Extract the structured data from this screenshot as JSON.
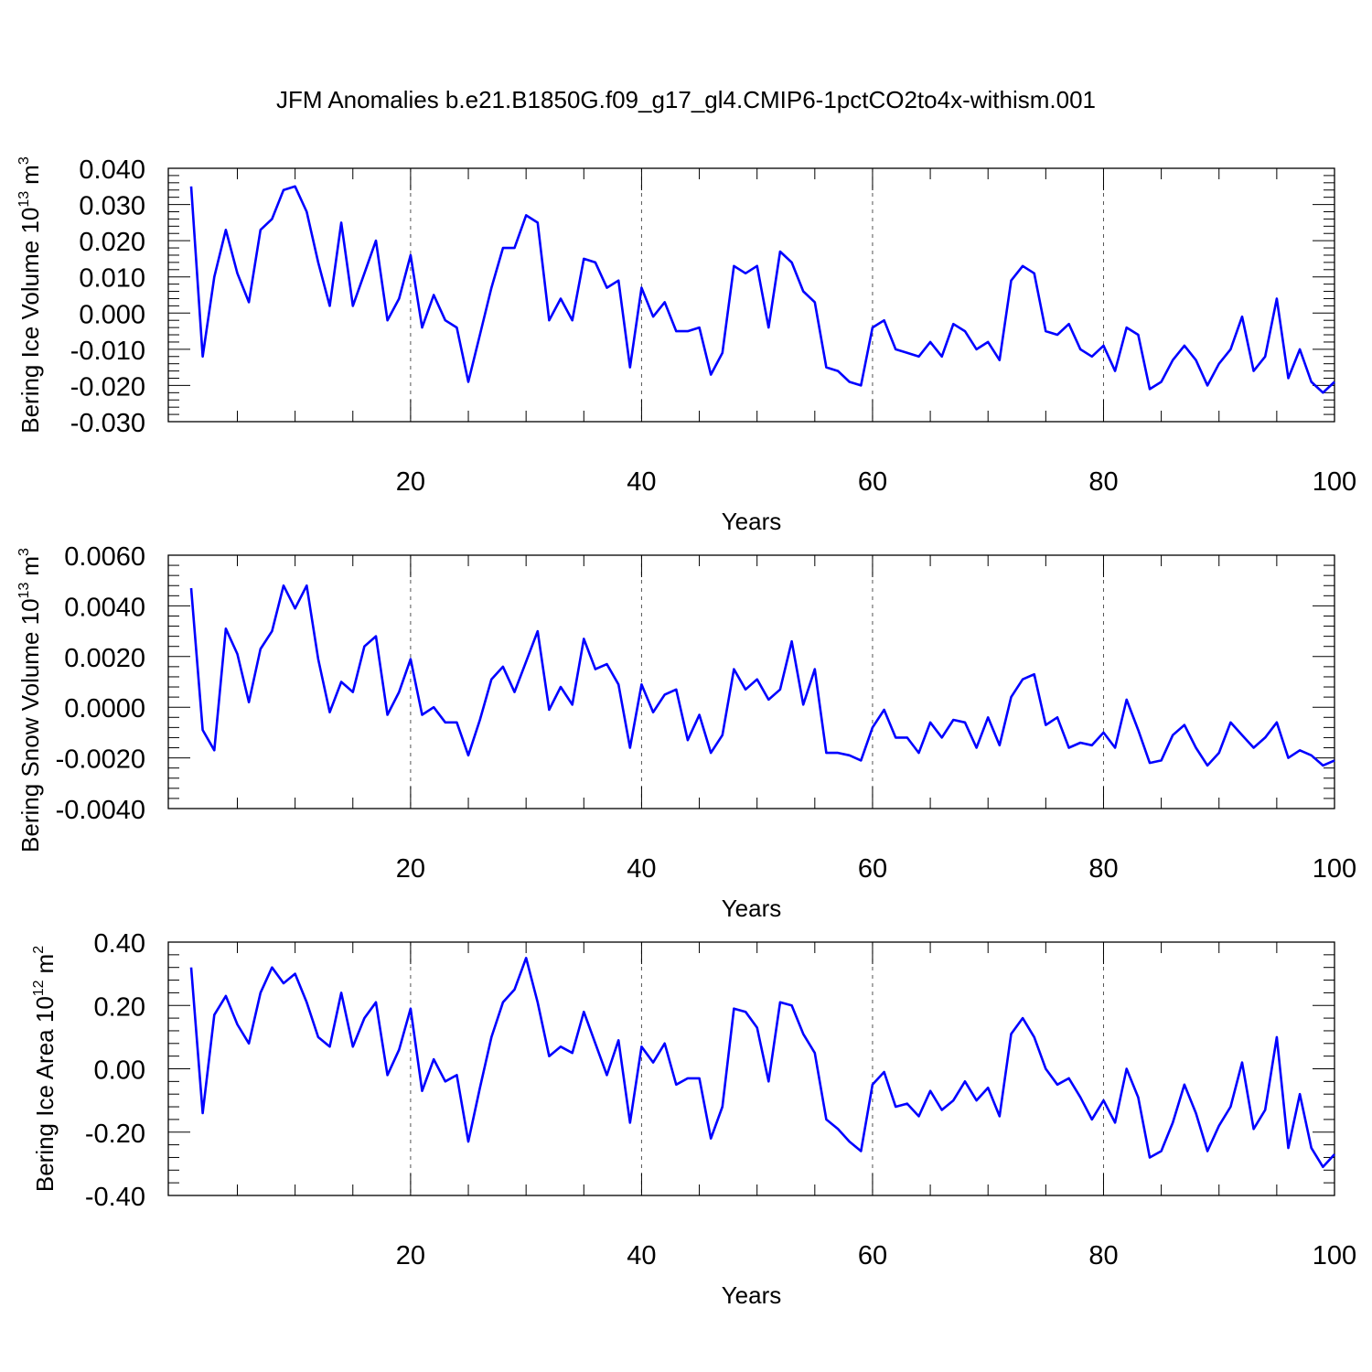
{
  "title": "JFM Anomalies b.e21.B1850G.f09_g17_gl4.CMIP6-1pctCO2to4x-withism.001",
  "chart_data": [
    {
      "type": "line",
      "ylabel_main": "Bering Ice Volume 10",
      "ylabel_exp": "13",
      "ylabel_unit": "m",
      "ylabel_unit_exp": "3",
      "xlabel": "Years",
      "xlim": [
        1,
        100
      ],
      "ylim": [
        -0.03,
        0.04
      ],
      "x_ticks": [
        20,
        40,
        60,
        80,
        100
      ],
      "x_tick_labels": [
        "20",
        "40",
        "60",
        "80",
        "100"
      ],
      "y_ticks": [
        -0.03,
        -0.02,
        -0.01,
        0.0,
        0.01,
        0.02,
        0.03,
        0.04
      ],
      "y_tick_labels": [
        "-0.030",
        "-0.020",
        "-0.010",
        "0.000",
        "0.010",
        "0.020",
        "0.030",
        "0.040"
      ],
      "grid": "vertical dashed at major x ticks",
      "series_color": "#0000ff",
      "x": [
        1,
        2,
        3,
        4,
        5,
        6,
        7,
        8,
        9,
        10,
        11,
        12,
        13,
        14,
        15,
        16,
        17,
        18,
        19,
        20,
        21,
        22,
        23,
        24,
        25,
        26,
        27,
        28,
        29,
        30,
        31,
        32,
        33,
        34,
        35,
        36,
        37,
        38,
        39,
        40,
        41,
        42,
        43,
        44,
        45,
        46,
        47,
        48,
        49,
        50,
        51,
        52,
        53,
        54,
        55,
        56,
        57,
        58,
        59,
        60,
        61,
        62,
        63,
        64,
        65,
        66,
        67,
        68,
        69,
        70,
        71,
        72,
        73,
        74,
        75,
        76,
        77,
        78,
        79,
        80,
        81,
        82,
        83,
        84,
        85,
        86,
        87,
        88,
        89,
        90,
        91,
        92,
        93,
        94,
        95,
        96,
        97,
        98,
        99,
        100
      ],
      "values": [
        0.035,
        -0.012,
        0.01,
        0.023,
        0.011,
        0.003,
        0.023,
        0.026,
        0.034,
        0.035,
        0.028,
        0.014,
        0.002,
        0.025,
        0.002,
        0.011,
        0.02,
        -0.002,
        0.004,
        0.016,
        -0.004,
        0.005,
        -0.002,
        -0.004,
        -0.019,
        -0.006,
        0.007,
        0.018,
        0.018,
        0.027,
        0.025,
        -0.002,
        0.004,
        -0.002,
        0.015,
        0.014,
        0.007,
        0.009,
        -0.015,
        0.007,
        -0.001,
        0.003,
        -0.005,
        -0.005,
        -0.004,
        -0.017,
        -0.011,
        0.013,
        0.011,
        0.013,
        -0.004,
        0.017,
        0.014,
        0.006,
        0.003,
        -0.015,
        -0.016,
        -0.019,
        -0.02,
        -0.004,
        -0.002,
        -0.01,
        -0.011,
        -0.012,
        -0.008,
        -0.012,
        -0.003,
        -0.005,
        -0.01,
        -0.008,
        -0.013,
        0.009,
        0.013,
        0.011,
        -0.005,
        -0.006,
        -0.003,
        -0.01,
        -0.012,
        -0.009,
        -0.016,
        -0.004,
        -0.006,
        -0.021,
        -0.019,
        -0.013,
        -0.009,
        -0.013,
        -0.02,
        -0.014,
        -0.01,
        -0.001,
        -0.016,
        -0.012,
        0.004,
        -0.018,
        -0.01,
        -0.019,
        -0.022,
        -0.019
      ]
    },
    {
      "type": "line",
      "ylabel_main": "Bering Snow Volume 10",
      "ylabel_exp": "13",
      "ylabel_unit": "m",
      "ylabel_unit_exp": "3",
      "xlabel": "Years",
      "xlim": [
        1,
        100
      ],
      "ylim": [
        -0.004,
        0.006
      ],
      "x_ticks": [
        20,
        40,
        60,
        80,
        100
      ],
      "x_tick_labels": [
        "20",
        "40",
        "60",
        "80",
        "100"
      ],
      "y_ticks": [
        -0.004,
        -0.002,
        0.0,
        0.002,
        0.004,
        0.006
      ],
      "y_tick_labels": [
        "-0.0040",
        "-0.0020",
        "0.0000",
        "0.0020",
        "0.0040",
        "0.0060"
      ],
      "grid": "vertical dashed at major x ticks",
      "series_color": "#0000ff",
      "x": [
        1,
        2,
        3,
        4,
        5,
        6,
        7,
        8,
        9,
        10,
        11,
        12,
        13,
        14,
        15,
        16,
        17,
        18,
        19,
        20,
        21,
        22,
        23,
        24,
        25,
        26,
        27,
        28,
        29,
        30,
        31,
        32,
        33,
        34,
        35,
        36,
        37,
        38,
        39,
        40,
        41,
        42,
        43,
        44,
        45,
        46,
        47,
        48,
        49,
        50,
        51,
        52,
        53,
        54,
        55,
        56,
        57,
        58,
        59,
        60,
        61,
        62,
        63,
        64,
        65,
        66,
        67,
        68,
        69,
        70,
        71,
        72,
        73,
        74,
        75,
        76,
        77,
        78,
        79,
        80,
        81,
        82,
        83,
        84,
        85,
        86,
        87,
        88,
        89,
        90,
        91,
        92,
        93,
        94,
        95,
        96,
        97,
        98,
        99,
        100
      ],
      "values": [
        0.0047,
        -0.0009,
        -0.0017,
        0.0031,
        0.0021,
        0.0002,
        0.0023,
        0.003,
        0.0048,
        0.0039,
        0.0048,
        0.0019,
        -0.0002,
        0.001,
        0.0006,
        0.0024,
        0.0028,
        -0.0003,
        0.0006,
        0.0019,
        -0.0003,
        0.0,
        -0.0006,
        -0.0006,
        -0.0019,
        -0.0005,
        0.0011,
        0.0016,
        0.0006,
        0.0018,
        0.003,
        -0.0001,
        0.0008,
        0.0001,
        0.0027,
        0.0015,
        0.0017,
        0.0009,
        -0.0016,
        0.0009,
        -0.0002,
        0.0005,
        0.0007,
        -0.0013,
        -0.0003,
        -0.0018,
        -0.0011,
        0.0015,
        0.0007,
        0.0011,
        0.0003,
        0.0007,
        0.0026,
        0.0001,
        0.0015,
        -0.0018,
        -0.0018,
        -0.0019,
        -0.0021,
        -0.0008,
        -0.0001,
        -0.0012,
        -0.0012,
        -0.0018,
        -0.0006,
        -0.0012,
        -0.0005,
        -0.0006,
        -0.0016,
        -0.0004,
        -0.0015,
        0.0004,
        0.0011,
        0.0013,
        -0.0007,
        -0.0004,
        -0.0016,
        -0.0014,
        -0.0015,
        -0.001,
        -0.0016,
        0.0003,
        -0.0009,
        -0.0022,
        -0.0021,
        -0.0011,
        -0.0007,
        -0.0016,
        -0.0023,
        -0.0018,
        -0.0006,
        -0.0011,
        -0.0016,
        -0.0012,
        -0.0006,
        -0.002,
        -0.0017,
        -0.0019,
        -0.0023,
        -0.0021
      ]
    },
    {
      "type": "line",
      "ylabel_main": "Bering Ice Area 10",
      "ylabel_exp": "12",
      "ylabel_unit": "m",
      "ylabel_unit_exp": "2",
      "xlabel": "Years",
      "xlim": [
        1,
        100
      ],
      "ylim": [
        -0.4,
        0.4
      ],
      "x_ticks": [
        20,
        40,
        60,
        80,
        100
      ],
      "x_tick_labels": [
        "20",
        "40",
        "60",
        "80",
        "100"
      ],
      "y_ticks": [
        -0.4,
        -0.2,
        0.0,
        0.2,
        0.4
      ],
      "y_tick_labels": [
        "-0.40",
        "-0.20",
        "0.00",
        "0.20",
        "0.40"
      ],
      "grid": "vertical dashed at major x ticks",
      "series_color": "#0000ff",
      "x": [
        1,
        2,
        3,
        4,
        5,
        6,
        7,
        8,
        9,
        10,
        11,
        12,
        13,
        14,
        15,
        16,
        17,
        18,
        19,
        20,
        21,
        22,
        23,
        24,
        25,
        26,
        27,
        28,
        29,
        30,
        31,
        32,
        33,
        34,
        35,
        36,
        37,
        38,
        39,
        40,
        41,
        42,
        43,
        44,
        45,
        46,
        47,
        48,
        49,
        50,
        51,
        52,
        53,
        54,
        55,
        56,
        57,
        58,
        59,
        60,
        61,
        62,
        63,
        64,
        65,
        66,
        67,
        68,
        69,
        70,
        71,
        72,
        73,
        74,
        75,
        76,
        77,
        78,
        79,
        80,
        81,
        82,
        83,
        84,
        85,
        86,
        87,
        88,
        89,
        90,
        91,
        92,
        93,
        94,
        95,
        96,
        97,
        98,
        99,
        100
      ],
      "values": [
        0.32,
        -0.14,
        0.17,
        0.23,
        0.14,
        0.08,
        0.24,
        0.32,
        0.27,
        0.3,
        0.21,
        0.1,
        0.07,
        0.24,
        0.07,
        0.16,
        0.21,
        -0.02,
        0.06,
        0.19,
        -0.07,
        0.03,
        -0.04,
        -0.02,
        -0.23,
        -0.06,
        0.1,
        0.21,
        0.25,
        0.35,
        0.21,
        0.04,
        0.07,
        0.05,
        0.18,
        0.08,
        -0.02,
        0.09,
        -0.17,
        0.07,
        0.02,
        0.08,
        -0.05,
        -0.03,
        -0.03,
        -0.22,
        -0.12,
        0.19,
        0.18,
        0.13,
        -0.04,
        0.21,
        0.2,
        0.11,
        0.05,
        -0.16,
        -0.19,
        -0.23,
        -0.26,
        -0.05,
        -0.01,
        -0.12,
        -0.11,
        -0.15,
        -0.07,
        -0.13,
        -0.1,
        -0.04,
        -0.1,
        -0.06,
        -0.15,
        0.11,
        0.16,
        0.1,
        0.0,
        -0.05,
        -0.03,
        -0.09,
        -0.16,
        -0.1,
        -0.17,
        0.0,
        -0.09,
        -0.28,
        -0.26,
        -0.17,
        -0.05,
        -0.14,
        -0.26,
        -0.18,
        -0.12,
        0.02,
        -0.19,
        -0.13,
        0.1,
        -0.25,
        -0.08,
        -0.25,
        -0.31,
        -0.27
      ]
    }
  ]
}
